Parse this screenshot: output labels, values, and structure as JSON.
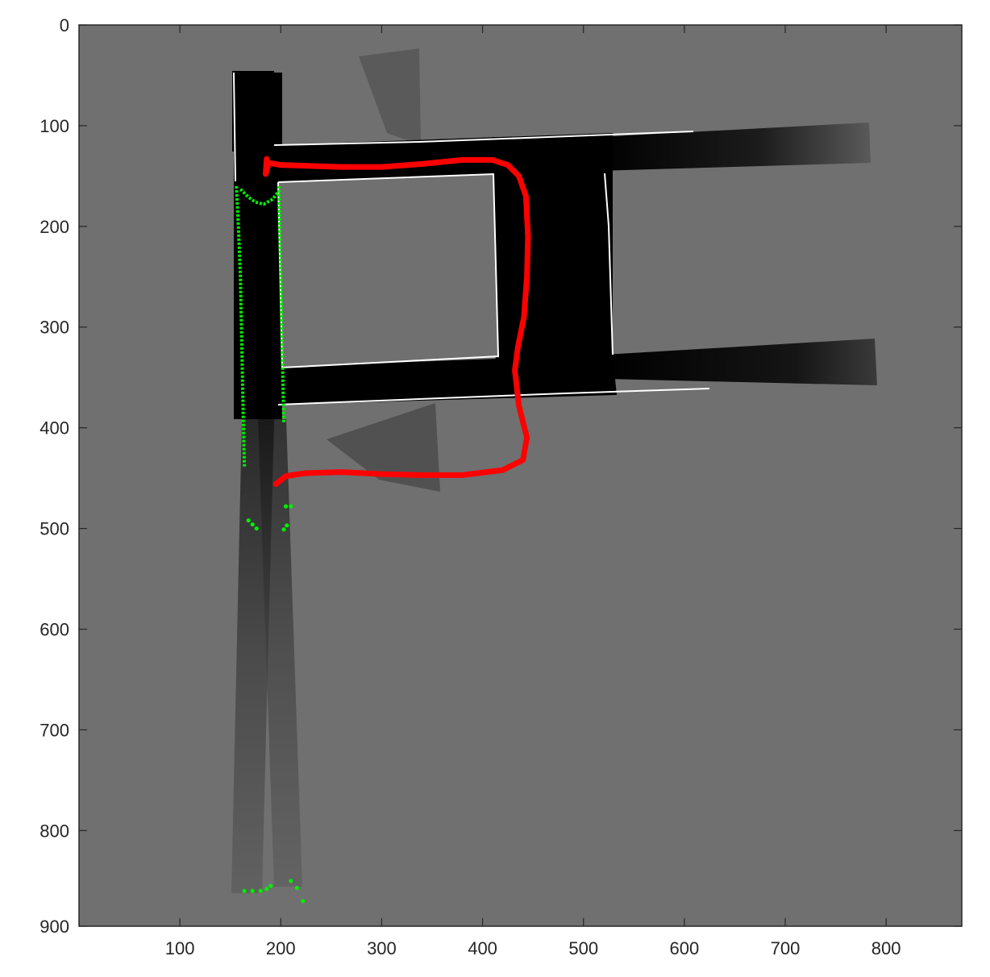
{
  "chart_data": {
    "type": "image",
    "title": "",
    "xlabel": "",
    "ylabel": "",
    "xlim": [
      0,
      875
    ],
    "ylim": [
      0,
      895
    ],
    "y_inverted": true,
    "x_ticks": [
      100,
      200,
      300,
      400,
      500,
      600,
      700,
      800
    ],
    "y_ticks": [
      0,
      100,
      200,
      300,
      400,
      500,
      600,
      700,
      800,
      900
    ],
    "x_tick_labels": [
      "100",
      "200",
      "300",
      "400",
      "500",
      "600",
      "700",
      "800"
    ],
    "y_tick_labels": [
      "0",
      "100",
      "200",
      "300",
      "400",
      "500",
      "600",
      "700",
      "800",
      "900"
    ],
    "grid": false,
    "colors": {
      "background": "#707070",
      "free_space": "#000000",
      "wall": "#ffffff",
      "trajectory": "#ff0000",
      "observations": "#00ee00"
    },
    "series": [
      {
        "color": "#ff0000",
        "kind": "trajectory",
        "x": [
          186,
          185,
          188,
          200,
          230,
          260,
          300,
          340,
          380,
          410,
          425,
          436,
          443,
          445,
          444,
          441,
          435,
          432,
          436,
          444,
          440,
          420,
          380,
          340,
          300,
          260,
          225,
          205,
          195
        ],
        "y": [
          133,
          148,
          137,
          139,
          140,
          141,
          141,
          138,
          134,
          134,
          139,
          150,
          170,
          210,
          250,
          290,
          320,
          343,
          378,
          410,
          432,
          442,
          447,
          447,
          446,
          444,
          445,
          448,
          456
        ]
      },
      {
        "color": "#00ee00",
        "kind": "left-wall-scan",
        "x": [
          156,
          158,
          160,
          161,
          162,
          163,
          164
        ],
        "y": [
          160,
          200,
          250,
          300,
          350,
          400,
          440
        ]
      },
      {
        "color": "#00ee00",
        "kind": "right-wall-scan",
        "x": [
          198,
          199,
          200,
          201,
          202,
          203
        ],
        "y": [
          160,
          200,
          250,
          300,
          350,
          395
        ]
      },
      {
        "color": "#00ee00",
        "kind": "door-scan",
        "x": [
          160,
          168,
          175,
          183,
          192,
          198
        ],
        "y": [
          163,
          171,
          176,
          178,
          173,
          165
        ]
      }
    ]
  }
}
